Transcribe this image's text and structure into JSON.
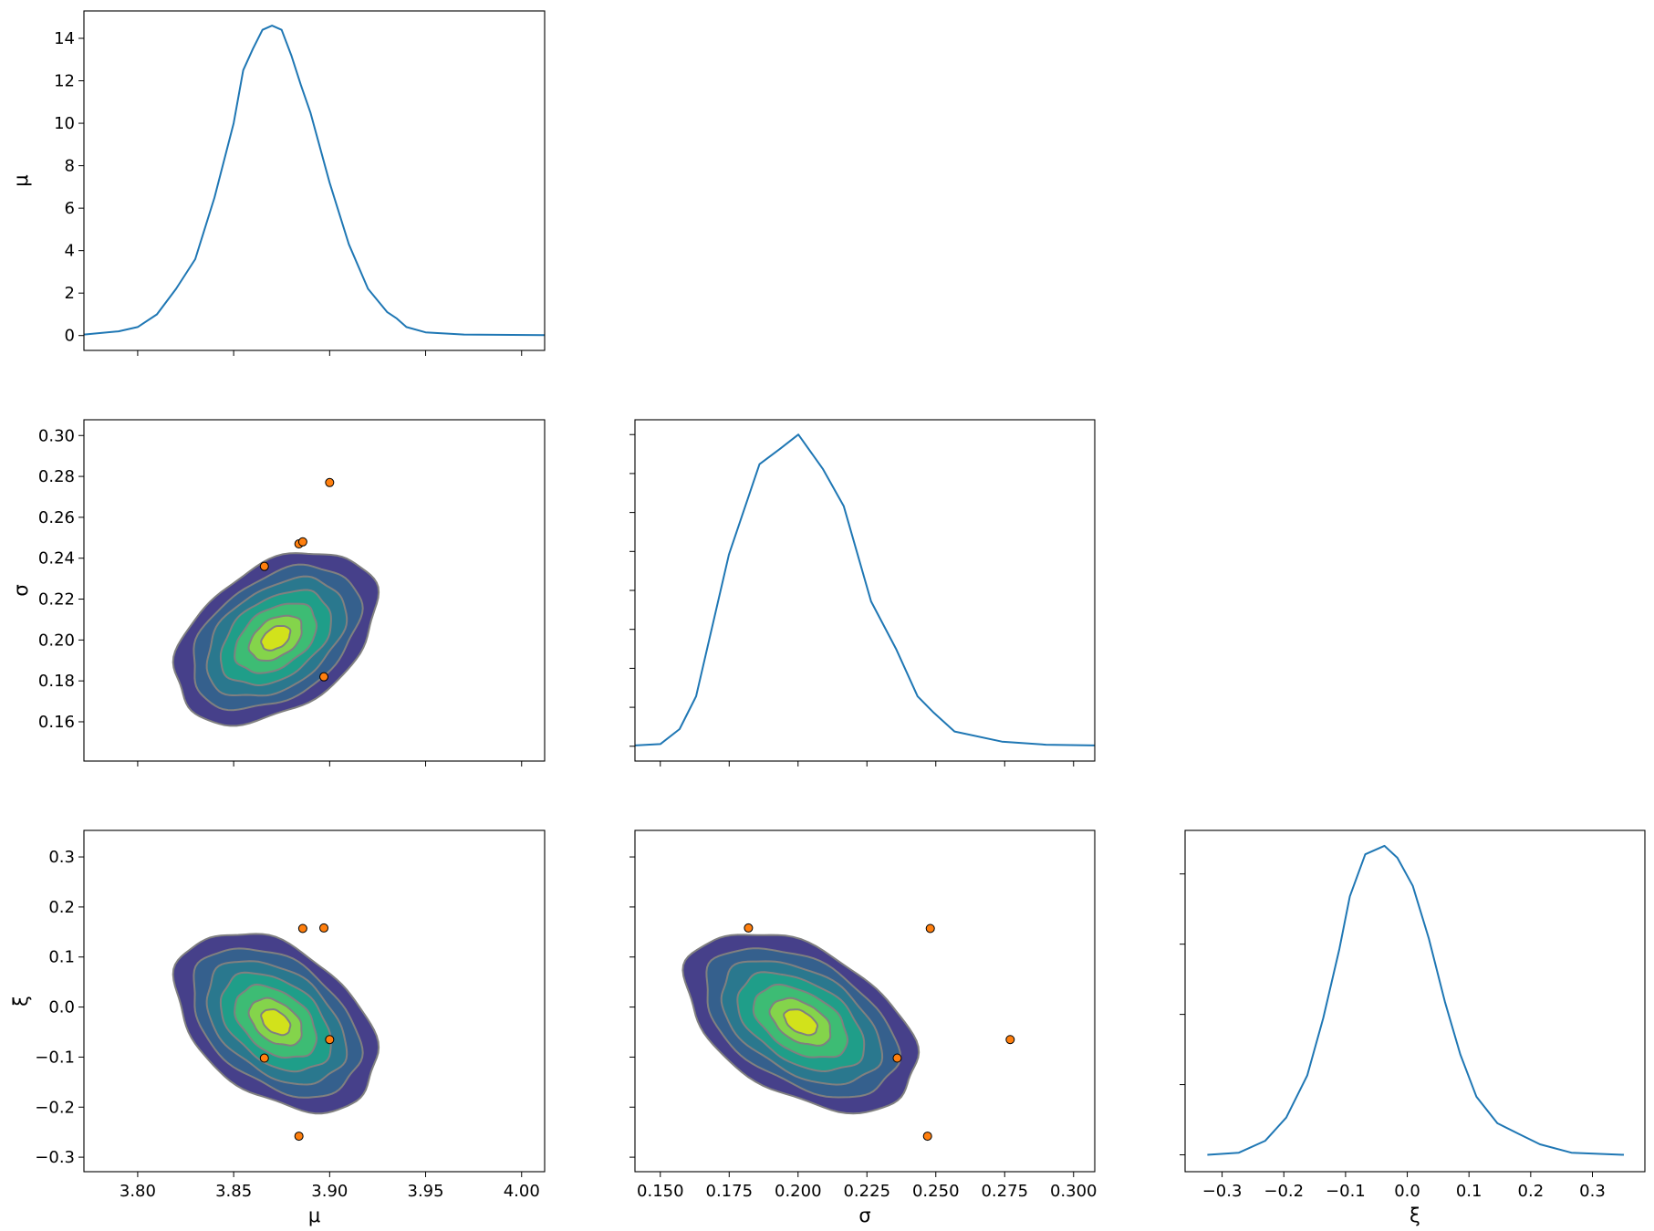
{
  "chart_data": {
    "type": "pair-plot",
    "variables": [
      "μ",
      "σ",
      "ξ"
    ],
    "colors": {
      "kde_line": "#1f77b4",
      "points_fill": "#ff7f0e",
      "points_edge": "#000000",
      "contour_line": "#808080",
      "contour_levels": [
        "#46408a",
        "#35608d",
        "#2a788e",
        "#1f9e89",
        "#3dbc74",
        "#84d44b",
        "#d2e21b"
      ]
    },
    "axes": {
      "mu": {
        "label": "μ",
        "lim": [
          3.772,
          4.012
        ],
        "ticks": [
          3.8,
          3.85,
          3.9,
          3.95,
          4.0
        ],
        "tick_labels": [
          "3.80",
          "3.85",
          "3.90",
          "3.95",
          "4.00"
        ]
      },
      "sigma": {
        "label": "σ",
        "lim": [
          0.1408,
          0.3077
        ],
        "ticks": [
          0.15,
          0.175,
          0.2,
          0.225,
          0.25,
          0.275,
          0.3
        ],
        "tick_labels": [
          "0.150",
          "0.175",
          "0.200",
          "0.225",
          "0.250",
          "0.275",
          "0.300"
        ],
        "yticks": [
          0.16,
          0.18,
          0.2,
          0.22,
          0.24,
          0.26,
          0.28,
          0.3
        ],
        "ytick_labels": [
          "0.16",
          "0.18",
          "0.20",
          "0.22",
          "0.24",
          "0.26",
          "0.28",
          "0.30"
        ]
      },
      "xi": {
        "label": "ξ",
        "lim": [
          -0.36,
          0.385
        ],
        "ylim": [
          -0.329,
          0.353
        ],
        "ticks": [
          -0.3,
          -0.2,
          -0.1,
          0.0,
          0.1,
          0.2,
          0.3
        ],
        "tick_labels": [
          "−0.3",
          "−0.2",
          "−0.1",
          "0.0",
          "0.1",
          "0.2",
          "0.3"
        ]
      }
    },
    "diagonal": {
      "mu": {
        "ylim": [
          -0.7,
          15.29
        ],
        "yticks": [
          0,
          2,
          4,
          6,
          8,
          10,
          12,
          14
        ],
        "ytick_labels": [
          "0",
          "2",
          "4",
          "6",
          "8",
          "10",
          "12",
          "14"
        ],
        "x": [
          3.772,
          3.79,
          3.8,
          3.81,
          3.82,
          3.83,
          3.84,
          3.85,
          3.855,
          3.86,
          3.865,
          3.87,
          3.875,
          3.88,
          3.885,
          3.89,
          3.9,
          3.91,
          3.92,
          3.93,
          3.935,
          3.94,
          3.95,
          3.97,
          4.012
        ],
        "y": [
          0.05,
          0.2,
          0.4,
          1.0,
          2.2,
          3.6,
          6.5,
          10.0,
          12.5,
          13.5,
          14.4,
          14.6,
          14.4,
          13.2,
          11.8,
          10.5,
          7.2,
          4.3,
          2.2,
          1.1,
          0.8,
          0.4,
          0.15,
          0.05,
          0.02
        ]
      },
      "sigma": {
        "ylim": [
          -0.95,
          20.95
        ],
        "yticks": [
          0,
          2.5,
          5,
          7.5,
          10,
          12.5,
          15,
          17.5,
          20
        ],
        "x": [
          0.1408,
          0.15,
          0.157,
          0.163,
          0.1749,
          0.186,
          0.1936,
          0.2001,
          0.209,
          0.2166,
          0.2265,
          0.2357,
          0.2434,
          0.249,
          0.2568,
          0.274,
          0.29,
          0.3077
        ],
        "y": [
          0.05,
          0.14,
          1.1,
          3.2,
          12.3,
          18.1,
          19.1,
          20.0,
          17.8,
          15.4,
          9.3,
          6.2,
          3.2,
          2.2,
          0.95,
          0.3,
          0.1,
          0.05
        ]
      },
      "xi": {
        "ylim": [
          -0.24,
          4.62
        ],
        "yticks": [
          0,
          1,
          2,
          3,
          4
        ],
        "x": [
          -0.324,
          -0.273,
          -0.23,
          -0.196,
          -0.162,
          -0.136,
          -0.11,
          -0.093,
          -0.068,
          -0.037,
          -0.016,
          0.009,
          0.035,
          0.061,
          0.086,
          0.112,
          0.146,
          0.18,
          0.215,
          0.266,
          0.351
        ],
        "y": [
          0.0,
          0.03,
          0.2,
          0.53,
          1.13,
          1.95,
          2.93,
          3.68,
          4.28,
          4.4,
          4.23,
          3.83,
          3.08,
          2.18,
          1.43,
          0.83,
          0.45,
          0.3,
          0.15,
          0.03,
          0.0
        ]
      }
    },
    "kde2d": {
      "levels_mahalanobis": [
        2.1,
        1.75,
        1.45,
        1.15,
        0.85,
        0.55,
        0.3
      ],
      "mean": {
        "mu": 3.872,
        "sigma": 0.201,
        "xi": -0.03
      },
      "sd": {
        "mu": 0.025,
        "sigma": 0.02,
        "xi": 0.085
      },
      "corr": {
        "mu_sigma": 0.4,
        "mu_xi": -0.4,
        "sigma_xi": -0.45
      }
    },
    "points": [
      {
        "mu": 3.9,
        "sigma": 0.277,
        "xi": -0.065
      },
      {
        "mu": 3.884,
        "sigma": 0.247,
        "xi": -0.258
      },
      {
        "mu": 3.886,
        "sigma": 0.248,
        "xi": 0.157
      },
      {
        "mu": 3.866,
        "sigma": 0.236,
        "xi": -0.102
      },
      {
        "mu": 3.897,
        "sigma": 0.182,
        "xi": 0.158
      }
    ]
  }
}
